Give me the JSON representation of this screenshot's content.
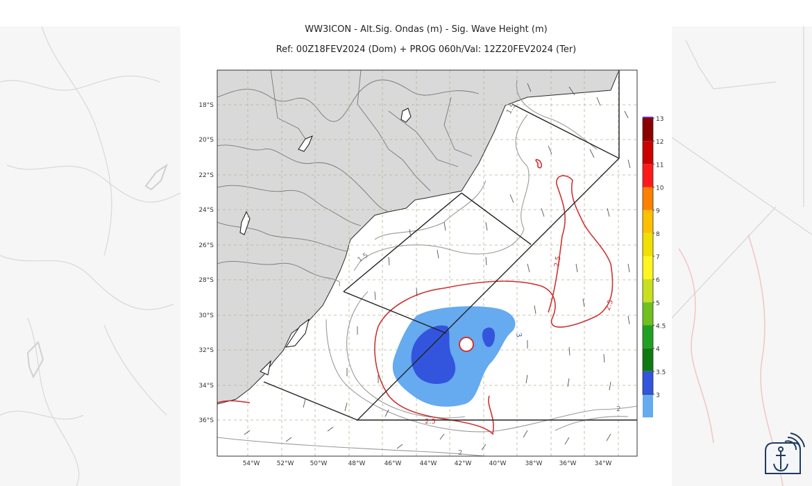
{
  "title_line1": "WW3ICON - Alt.Sig. Ondas (m) - Sig. Wave Height (m)",
  "title_line2": "Ref: 00Z18FEV2024 (Dom) + PROG 060h/Val: 12Z20FEV2024 (Ter)",
  "lat_labels": [
    "18°S",
    "20°S",
    "22°S",
    "24°S",
    "26°S",
    "28°S",
    "30°S",
    "32°S",
    "34°S",
    "36°S"
  ],
  "lon_labels": [
    "54°W",
    "52°W",
    "50°W",
    "48°W",
    "46°W",
    "44°W",
    "42°W",
    "40°W",
    "38°W",
    "36°W",
    "34°W"
  ],
  "colorbar_labels": [
    "13",
    "12",
    "11",
    "10",
    "9",
    "8",
    "7",
    "6",
    "5",
    "4.5",
    "4",
    "3.5",
    "3"
  ],
  "colorbar_colors": [
    "#8a2be2",
    "#8b0000",
    "#cc0000",
    "#ff1a1a",
    "#ff8000",
    "#ffc000",
    "#f0e000",
    "#fff520",
    "#c8e020",
    "#70c020",
    "#20a020",
    "#107a10",
    "#3355dd",
    "#66aaf0"
  ],
  "contour_labels": {
    "c1": "1.5",
    "c2": "1.5",
    "c3": "2.5",
    "c4": "2.5",
    "c5": "2.5",
    "c6": "3",
    "c7": "2",
    "c8": "2",
    "c9": "2.5"
  }
}
